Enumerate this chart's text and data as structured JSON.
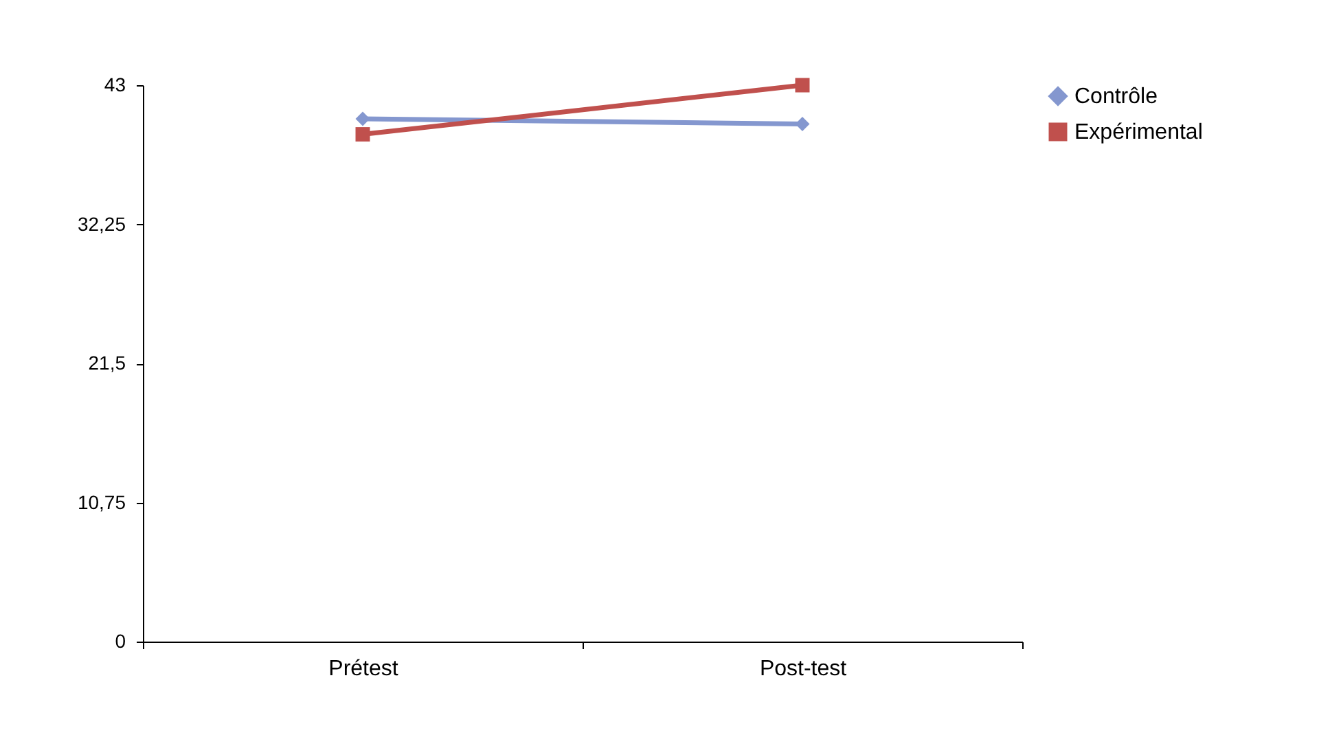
{
  "chart_data": {
    "type": "line",
    "categories": [
      "Prétest",
      "Post-test"
    ],
    "series": [
      {
        "name": "Contrôle",
        "color": "#8497cf",
        "marker": "diamond",
        "values": [
          40.4,
          40.0
        ]
      },
      {
        "name": "Expérimental",
        "color": "#c0504d",
        "marker": "square",
        "values": [
          39.2,
          43.0
        ]
      }
    ],
    "ylim": [
      0,
      43
    ],
    "yticks": [
      0,
      {
        "value": 10.75,
        "label": "10,75"
      },
      {
        "value": 21.5,
        "label": "21,5"
      },
      {
        "value": 32.25,
        "label": "32,25"
      },
      43
    ],
    "grid": false,
    "legend": "right",
    "line_style": "solid"
  }
}
